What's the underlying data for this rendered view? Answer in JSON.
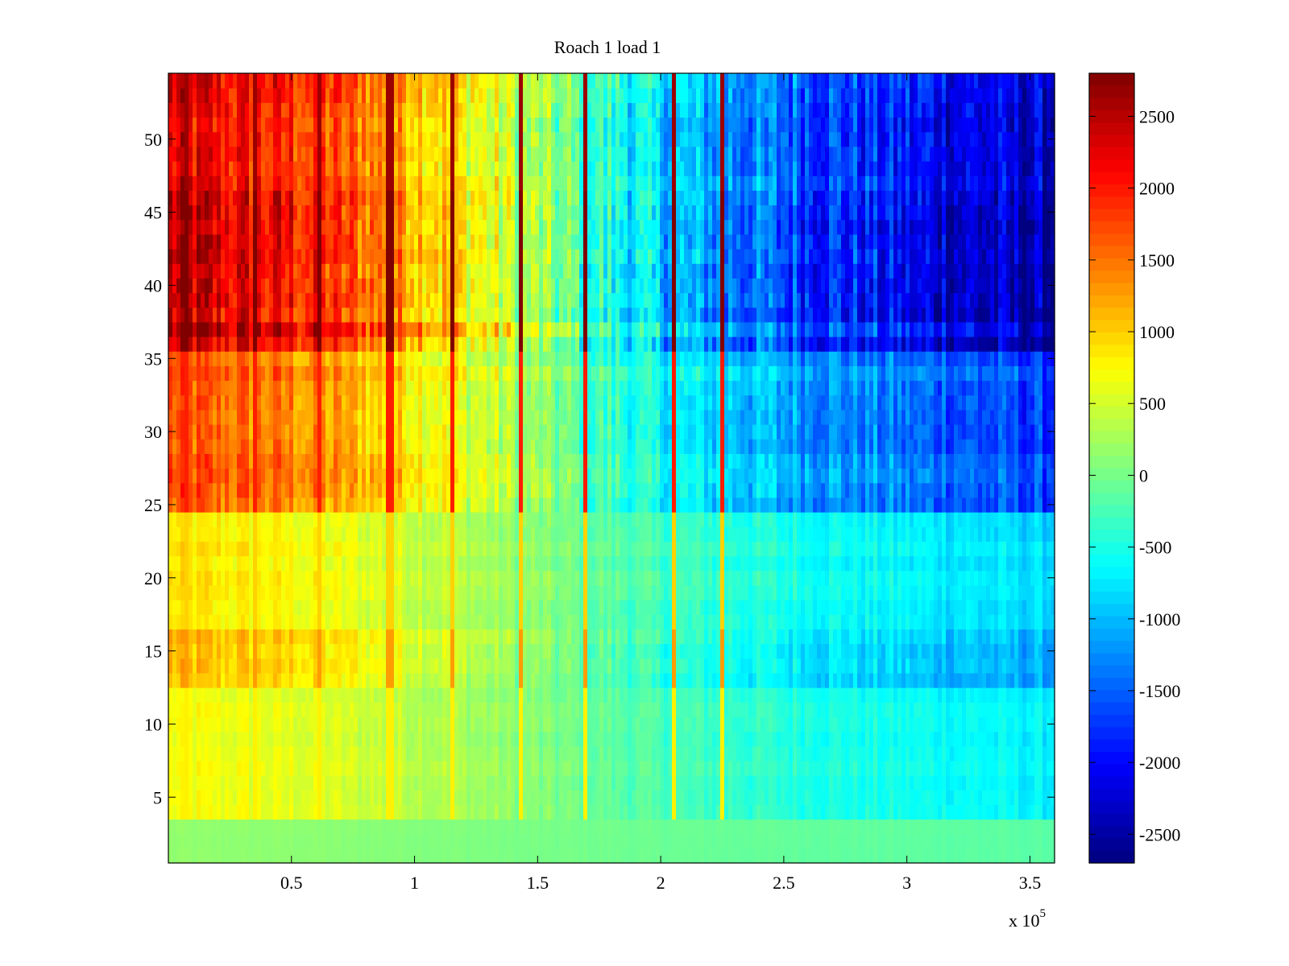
{
  "chart_data": {
    "type": "heatmap",
    "title": "Roach 1 load 1",
    "xlabel": "",
    "ylabel": "",
    "x_exponent_label": "x 10",
    "x_exponent_power": "5",
    "x_range": [
      0,
      3.6
    ],
    "y_range": [
      0.5,
      54.5
    ],
    "x_ticks": [
      0.5,
      1,
      1.5,
      2,
      2.5,
      3,
      3.5
    ],
    "x_tick_labels": [
      "0.5",
      "1",
      "1.5",
      "2",
      "2.5",
      "3",
      "3.5"
    ],
    "y_ticks": [
      5,
      10,
      15,
      20,
      25,
      30,
      35,
      40,
      45,
      50
    ],
    "y_tick_labels": [
      "5",
      "10",
      "15",
      "20",
      "25",
      "30",
      "35",
      "40",
      "45",
      "50"
    ],
    "colorbar": {
      "colormap": "jet",
      "range": [
        -2700,
        2800
      ],
      "ticks": [
        2500,
        2000,
        1500,
        1000,
        500,
        0,
        -500,
        -1000,
        -1500,
        -2000,
        -2500
      ],
      "tick_labels": [
        "2500",
        "2000",
        "1500",
        "1000",
        "500",
        "0",
        "-500",
        "-1000",
        "-1500",
        "-2000",
        "-2500"
      ]
    },
    "rows": 54,
    "x_trend": [
      {
        "x": 0.0,
        "v": 1.0
      },
      {
        "x": 0.5,
        "v": 0.85
      },
      {
        "x": 1.0,
        "v": 0.55
      },
      {
        "x": 1.5,
        "v": 0.1
      },
      {
        "x": 2.0,
        "v": -0.35
      },
      {
        "x": 2.5,
        "v": -0.6
      },
      {
        "x": 3.0,
        "v": -0.8
      },
      {
        "x": 3.6,
        "v": -1.0
      }
    ],
    "row_groups": [
      {
        "rows": [
          1,
          3
        ],
        "amplitude": 150
      },
      {
        "rows": [
          4,
          12
        ],
        "amplitude": 700
      },
      {
        "rows": [
          13,
          16
        ],
        "amplitude": 1100
      },
      {
        "rows": [
          17,
          24
        ],
        "amplitude": 850
      },
      {
        "rows": [
          25,
          35
        ],
        "amplitude": 1700
      },
      {
        "rows": [
          36,
          46
        ],
        "amplitude": 2500
      },
      {
        "rows": [
          47,
          54
        ],
        "amplitude": 2300
      }
    ],
    "bright_stripes_x": [
      0.08,
      0.35,
      0.62,
      0.9,
      1.16,
      1.43,
      1.7,
      2.05,
      2.25
    ]
  }
}
